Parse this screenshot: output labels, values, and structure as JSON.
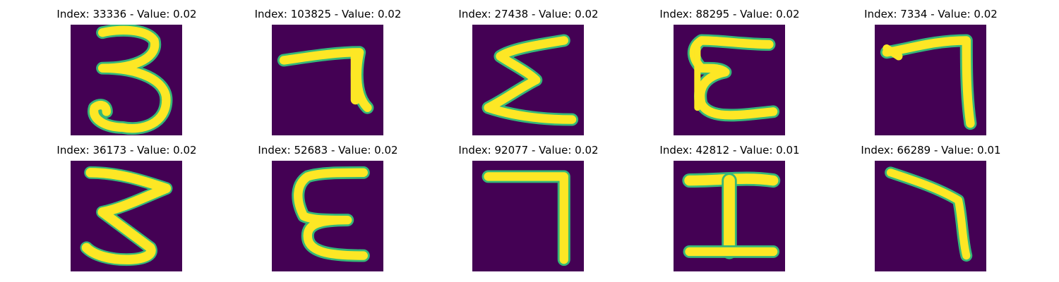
{
  "colors": {
    "background": "#440154",
    "foreground": "#fde725",
    "edge": "#35b779",
    "mid": "#21908d"
  },
  "panels": [
    {
      "title": "Index: 33336 - Value: 0.02",
      "glyph": "3"
    },
    {
      "title": "Index: 103825 - Value: 0.02",
      "glyph": "7"
    },
    {
      "title": "Index: 27438 - Value: 0.02",
      "glyph": "Σ"
    },
    {
      "title": "Index: 88295 - Value: 0.02",
      "glyph": "Ɛ"
    },
    {
      "title": "Index: 7334 - Value: 0.02",
      "glyph": "7"
    },
    {
      "title": "Index: 36173 - Value: 0.02",
      "glyph": "3"
    },
    {
      "title": "Index: 52683 - Value: 0.02",
      "glyph": "Ɛ"
    },
    {
      "title": "Index: 92077 - Value: 0.02",
      "glyph": "7"
    },
    {
      "title": "Index: 42812 - Value: 0.01",
      "glyph": "I"
    },
    {
      "title": "Index: 66289 - Value: 0.01",
      "glyph": "7"
    }
  ]
}
